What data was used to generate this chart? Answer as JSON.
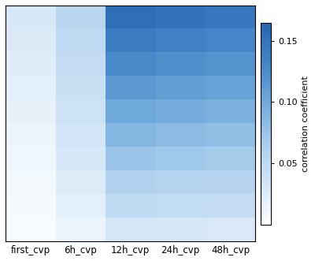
{
  "columns": [
    "first_cvp",
    "6h_cvp",
    "12h_cvp",
    "24h_cvp",
    "48h_cvp"
  ],
  "n_rows": 10,
  "data": [
    [
      0.03,
      0.055,
      0.155,
      0.15,
      0.145
    ],
    [
      0.027,
      0.05,
      0.14,
      0.135,
      0.13
    ],
    [
      0.024,
      0.046,
      0.127,
      0.122,
      0.118
    ],
    [
      0.021,
      0.042,
      0.114,
      0.11,
      0.106
    ],
    [
      0.018,
      0.038,
      0.101,
      0.097,
      0.093
    ],
    [
      0.015,
      0.034,
      0.088,
      0.084,
      0.081
    ],
    [
      0.012,
      0.03,
      0.075,
      0.072,
      0.069
    ],
    [
      0.009,
      0.026,
      0.062,
      0.059,
      0.057
    ],
    [
      0.007,
      0.021,
      0.049,
      0.047,
      0.045
    ],
    [
      0.004,
      0.015,
      0.032,
      0.03,
      0.028
    ]
  ],
  "vmin": 0.0,
  "vmax": 0.165,
  "colorbar_ticks": [
    0.05,
    0.1,
    0.15
  ],
  "colorbar_ticklabels": [
    "0.05",
    "0.10",
    "0.15"
  ],
  "colorbar_label": "correlation coefficient",
  "cmap": "Blues",
  "figsize": [
    4.0,
    3.31
  ],
  "dpi": 100,
  "xlabel_fontsize": 8.5,
  "colorbar_label_fontsize": 8,
  "tick_fontsize": 8,
  "bg_color": "#f0f0f0"
}
